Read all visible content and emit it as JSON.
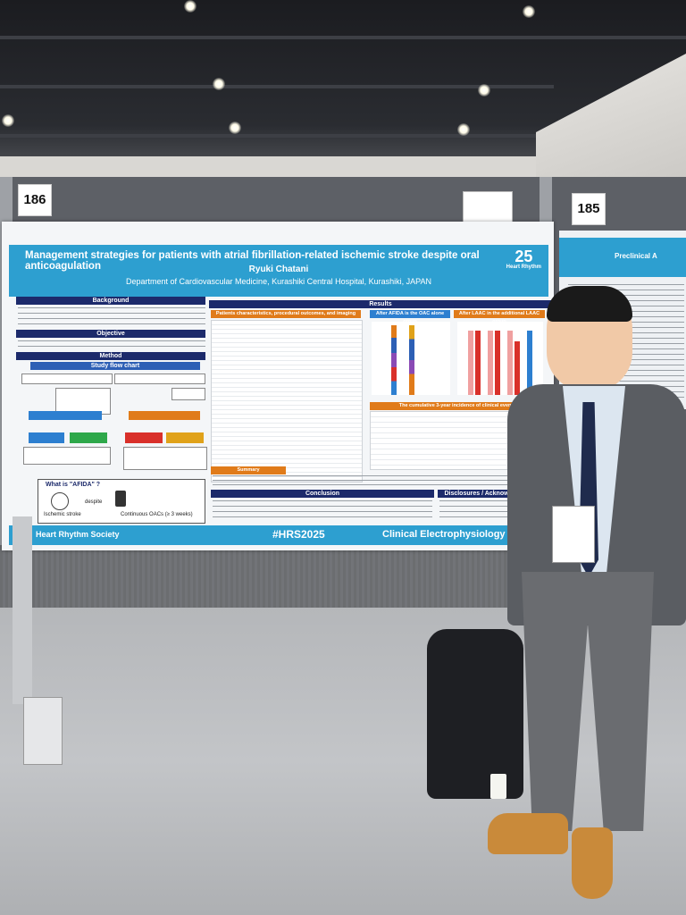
{
  "booths": {
    "left_number": "186",
    "right_number": "185"
  },
  "poster": {
    "title": "Management strategies for patients with atrial fibrillation-related ischemic stroke despite oral anticoagulation",
    "author": "Ryuki Chatani",
    "department": "Department of Cardiovascular Medicine, Kurashiki Central Hospital, Kurashiki, JAPAN",
    "logo_year": "25",
    "logo_caption": "Heart Rhythm",
    "sections": {
      "background": "Background",
      "objective": "Objective",
      "method": "Method",
      "study_flow": "Study flow chart",
      "results": "Results",
      "patients_char": "Patients characteristics, procedural outcomes, and imaging follow",
      "after_afida": "After AFIDA is the OAC alone group",
      "after_laac": "After LAAC in the additional LAAC group",
      "cumulative": "The cumulative 3-year incidence of clinical events",
      "summary": "Summary",
      "conclusion": "Conclusion",
      "disclosures": "Disclosures / Acknowledgments"
    },
    "afida_box": {
      "title": "What is \"AFIDA\" ?",
      "label_left": "Ischemic stroke",
      "despite": "despite",
      "label_right": "Continuous OACs (≥ 3 weeks)"
    },
    "footer": {
      "society": "Heart Rhythm Society",
      "hashtag": "#HRS2025",
      "track": "Clinical Electrophysiology"
    }
  },
  "neighbor_poster": {
    "title_fragment": "Preclinical A"
  },
  "colors": {
    "poster_blue": "#2d9fd0",
    "section_navy": "#1c2a6b",
    "section_orange": "#e07b1a",
    "jacket": "#5a5d62",
    "shoes": "#c98a3a"
  }
}
